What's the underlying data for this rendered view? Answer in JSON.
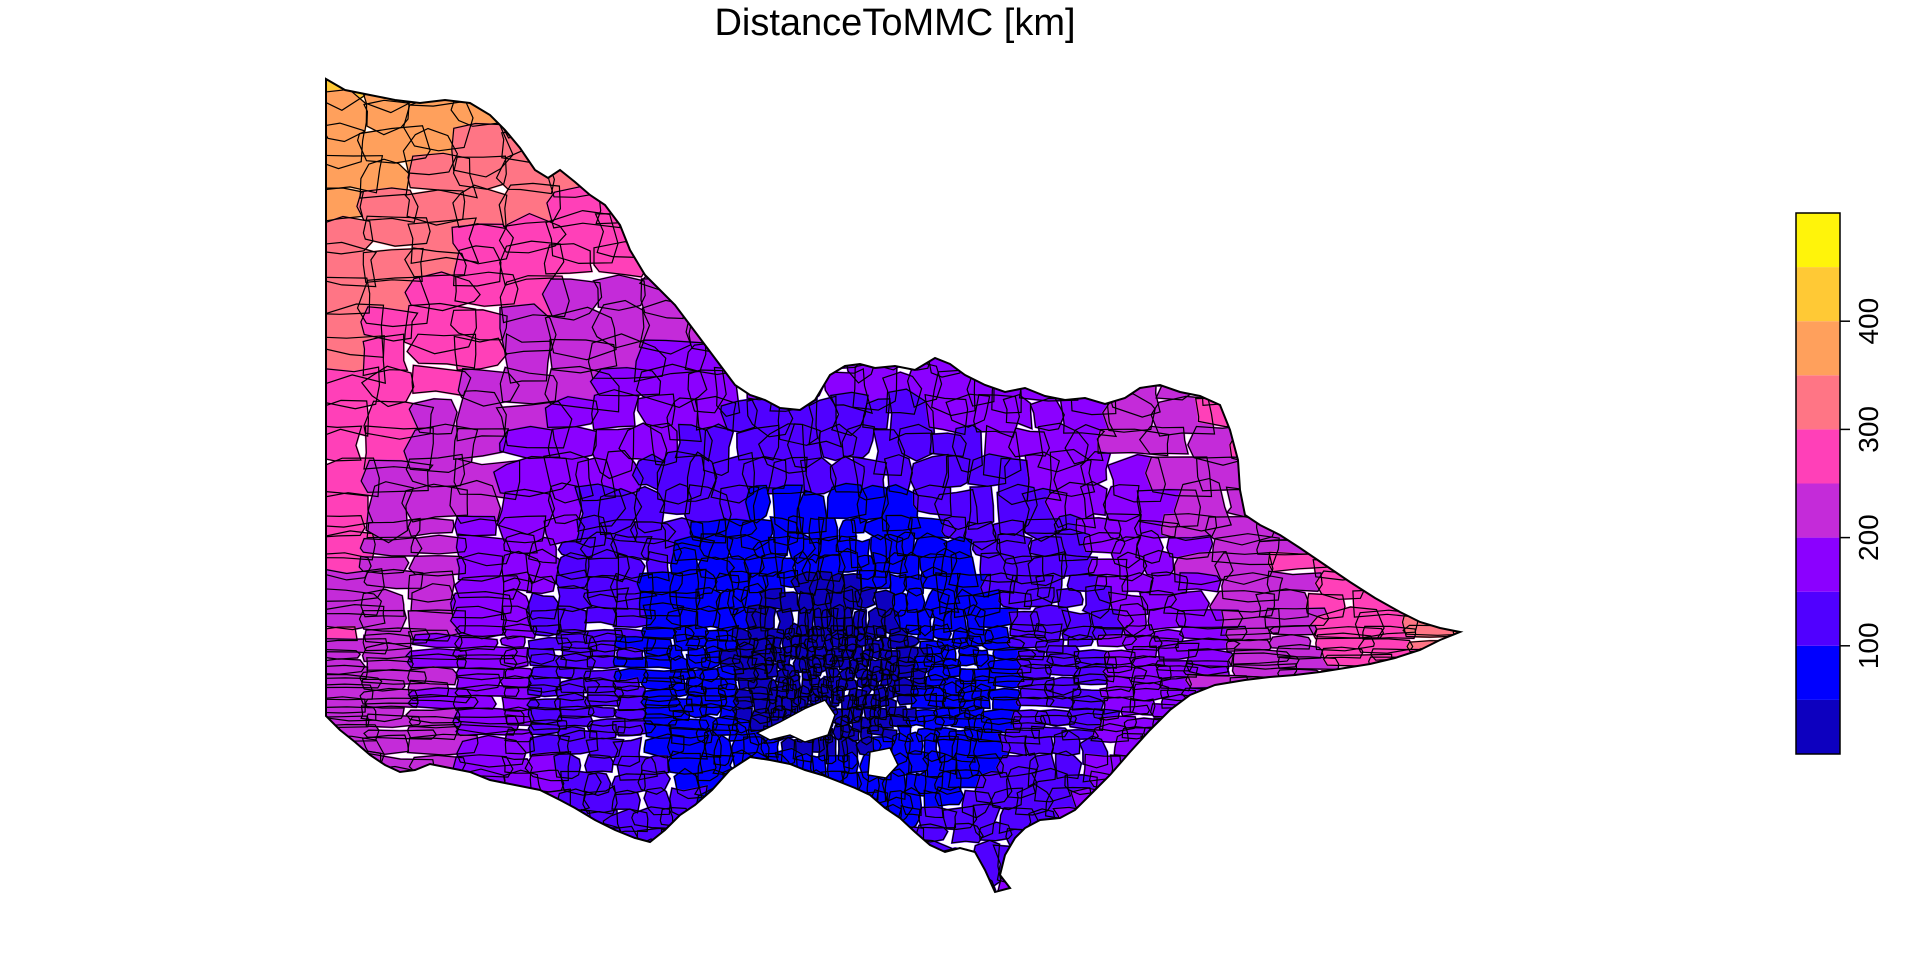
{
  "title": "DistanceToMMC [km]",
  "legend": {
    "ticks": [
      "100",
      "200",
      "300",
      "400"
    ],
    "tick_values": [
      100,
      200,
      300,
      400
    ],
    "range": [
      0,
      500
    ],
    "bin_edges": [
      0,
      50,
      100,
      150,
      200,
      250,
      300,
      350,
      400,
      450,
      500
    ],
    "colors": [
      "#0D00BF",
      "#0000FF",
      "#5000FF",
      "#8B00FF",
      "#C42BD9",
      "#FF40B8",
      "#FF7585",
      "#FFA05C",
      "#FFC935",
      "#FFF40A"
    ],
    "placement": "right"
  },
  "map": {
    "region_colors_by_distance_bin": [
      "#0D00BF",
      "#0000FF",
      "#5000FF",
      "#8B00FF",
      "#C42BD9",
      "#FF40B8",
      "#FF7585",
      "#FFA05C",
      "#FFC935",
      "#FFF40A"
    ],
    "border_color": "#000000"
  }
}
